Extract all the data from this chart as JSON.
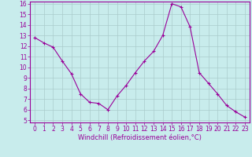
{
  "x": [
    0,
    1,
    2,
    3,
    4,
    5,
    6,
    7,
    8,
    9,
    10,
    11,
    12,
    13,
    14,
    15,
    16,
    17,
    18,
    19,
    20,
    21,
    22,
    23
  ],
  "y": [
    12.8,
    12.3,
    11.9,
    10.6,
    9.4,
    7.5,
    6.7,
    6.6,
    6.0,
    7.3,
    8.3,
    9.5,
    10.6,
    11.5,
    13.0,
    16.0,
    15.7,
    13.8,
    9.5,
    8.5,
    7.5,
    6.4,
    5.8,
    5.3
  ],
  "line_color": "#990099",
  "marker": "+",
  "marker_size": 3,
  "bg_color": "#c8ecec",
  "grid_color": "#aacccc",
  "xlabel": "Windchill (Refroidissement éolien,°C)",
  "xlabel_color": "#990099",
  "tick_color": "#990099",
  "spine_color": "#990099",
  "ylim": [
    5,
    16
  ],
  "xlim": [
    -0.5,
    23.5
  ],
  "yticks": [
    5,
    6,
    7,
    8,
    9,
    10,
    11,
    12,
    13,
    14,
    15,
    16
  ],
  "xticks": [
    0,
    1,
    2,
    3,
    4,
    5,
    6,
    7,
    8,
    9,
    10,
    11,
    12,
    13,
    14,
    15,
    16,
    17,
    18,
    19,
    20,
    21,
    22,
    23
  ],
  "label_fontsize": 6,
  "tick_fontsize": 5.5
}
